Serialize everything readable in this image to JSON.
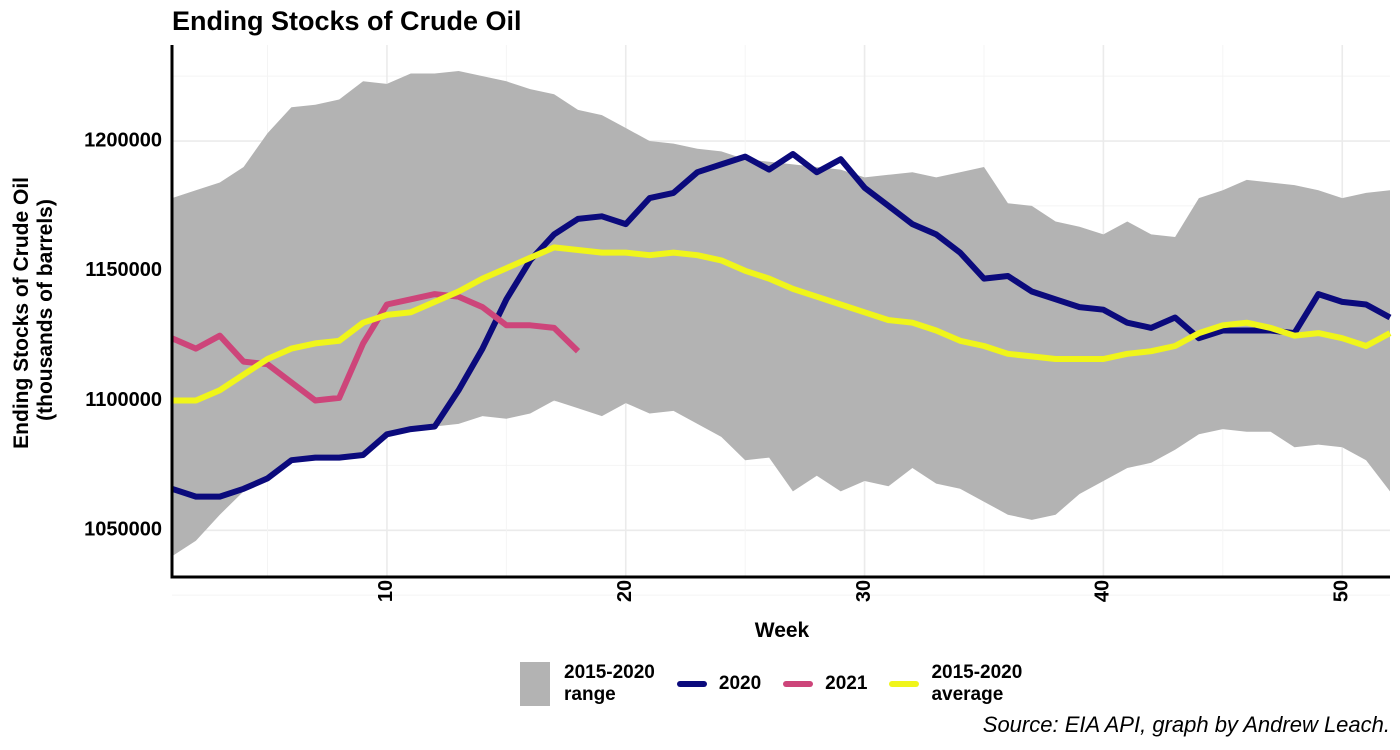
{
  "chart_data": {
    "type": "line",
    "title": "Ending Stocks of Crude Oil",
    "xlabel": "Week",
    "ylabel_lines": [
      "Ending Stocks of Crude Oil",
      "(thousands of barrels)"
    ],
    "caption": "Source: EIA API, graph by Andrew Leach.",
    "xlim": [
      1,
      52
    ],
    "ylim": [
      1032000,
      1237000
    ],
    "x_ticks": [
      10,
      20,
      30,
      40,
      50
    ],
    "y_ticks": [
      1050000,
      1100000,
      1150000,
      1200000
    ],
    "grid": true,
    "legend_position": "bottom",
    "range": {
      "name": "2015-2020\nrange",
      "color": "#b3b3b3",
      "x": [
        1,
        2,
        3,
        4,
        5,
        6,
        7,
        8,
        9,
        10,
        11,
        12,
        13,
        14,
        15,
        16,
        17,
        18,
        19,
        20,
        21,
        22,
        23,
        24,
        25,
        26,
        27,
        28,
        29,
        30,
        31,
        32,
        33,
        34,
        35,
        36,
        37,
        38,
        39,
        40,
        41,
        42,
        43,
        44,
        45,
        46,
        47,
        48,
        49,
        50,
        51,
        52
      ],
      "lower": [
        1040000,
        1046000,
        1056000,
        1065000,
        1070000,
        1076000,
        1078000,
        1079000,
        1080000,
        1086000,
        1088000,
        1090000,
        1091000,
        1094000,
        1093000,
        1095000,
        1100000,
        1097000,
        1094000,
        1099000,
        1095000,
        1096000,
        1091000,
        1086000,
        1077000,
        1078000,
        1065000,
        1071000,
        1065000,
        1069000,
        1067000,
        1074000,
        1068000,
        1066000,
        1061000,
        1056000,
        1054000,
        1056000,
        1064000,
        1069000,
        1074000,
        1076000,
        1081000,
        1087000,
        1089000,
        1088000,
        1088000,
        1082000,
        1083000,
        1082000,
        1077000,
        1065000
      ],
      "upper": [
        1178000,
        1181000,
        1184000,
        1190000,
        1203000,
        1213000,
        1214000,
        1216000,
        1223000,
        1222000,
        1226000,
        1226000,
        1227000,
        1225000,
        1223000,
        1220000,
        1218000,
        1212000,
        1210000,
        1205000,
        1200000,
        1199000,
        1197000,
        1196000,
        1193000,
        1192000,
        1191000,
        1190000,
        1189000,
        1186000,
        1187000,
        1188000,
        1186000,
        1188000,
        1190000,
        1176000,
        1175000,
        1169000,
        1167000,
        1164000,
        1169000,
        1164000,
        1163000,
        1178000,
        1181000,
        1185000,
        1184000,
        1183000,
        1181000,
        1178000,
        1180000,
        1181000
      ]
    },
    "series": [
      {
        "name": "2020",
        "color": "#0b0a7c",
        "x": [
          1,
          2,
          3,
          4,
          5,
          6,
          7,
          8,
          9,
          10,
          11,
          12,
          13,
          14,
          15,
          16,
          17,
          18,
          19,
          20,
          21,
          22,
          23,
          24,
          25,
          26,
          27,
          28,
          29,
          30,
          31,
          32,
          33,
          34,
          35,
          36,
          37,
          38,
          39,
          40,
          41,
          42,
          43,
          44,
          45,
          46,
          47,
          48,
          49,
          50,
          51,
          52
        ],
        "values": [
          1066000,
          1063000,
          1063000,
          1066000,
          1070000,
          1077000,
          1078000,
          1078000,
          1079000,
          1087000,
          1089000,
          1090000,
          1104000,
          1120000,
          1139000,
          1154000,
          1164000,
          1170000,
          1171000,
          1168000,
          1178000,
          1180000,
          1188000,
          1191000,
          1194000,
          1189000,
          1195000,
          1188000,
          1193000,
          1182000,
          1175000,
          1168000,
          1164000,
          1157000,
          1147000,
          1148000,
          1142000,
          1139000,
          1136000,
          1135000,
          1130000,
          1128000,
          1132000,
          1124000,
          1127000,
          1127000,
          1127000,
          1126000,
          1141000,
          1138000,
          1137000,
          1132000
        ]
      },
      {
        "name": "2021",
        "color": "#cd457a",
        "x": [
          1,
          2,
          3,
          4,
          5,
          6,
          7,
          8,
          9,
          10,
          11,
          12,
          13,
          14,
          15,
          16,
          17,
          18
        ],
        "values": [
          1124000,
          1120000,
          1125000,
          1115000,
          1114000,
          1107000,
          1100000,
          1101000,
          1122000,
          1137000,
          1139000,
          1141000,
          1140000,
          1136000,
          1129000,
          1129000,
          1128000,
          1119000
        ]
      },
      {
        "name": "2015-2020\naverage",
        "color": "#f0f51a",
        "x": [
          1,
          2,
          3,
          4,
          5,
          6,
          7,
          8,
          9,
          10,
          11,
          12,
          13,
          14,
          15,
          16,
          17,
          18,
          19,
          20,
          21,
          22,
          23,
          24,
          25,
          26,
          27,
          28,
          29,
          30,
          31,
          32,
          33,
          34,
          35,
          36,
          37,
          38,
          39,
          40,
          41,
          42,
          43,
          44,
          45,
          46,
          47,
          48,
          49,
          50,
          51,
          52
        ],
        "values": [
          1100000,
          1100000,
          1104000,
          1110000,
          1116000,
          1120000,
          1122000,
          1123000,
          1130000,
          1133000,
          1134000,
          1138000,
          1142000,
          1147000,
          1151000,
          1155000,
          1159000,
          1158000,
          1157000,
          1157000,
          1156000,
          1157000,
          1156000,
          1154000,
          1150000,
          1147000,
          1143000,
          1140000,
          1137000,
          1134000,
          1131000,
          1130000,
          1127000,
          1123000,
          1121000,
          1118000,
          1117000,
          1116000,
          1116000,
          1116000,
          1118000,
          1119000,
          1121000,
          1126000,
          1129000,
          1130000,
          1128000,
          1125000,
          1126000,
          1124000,
          1121000,
          1126000
        ]
      }
    ]
  }
}
